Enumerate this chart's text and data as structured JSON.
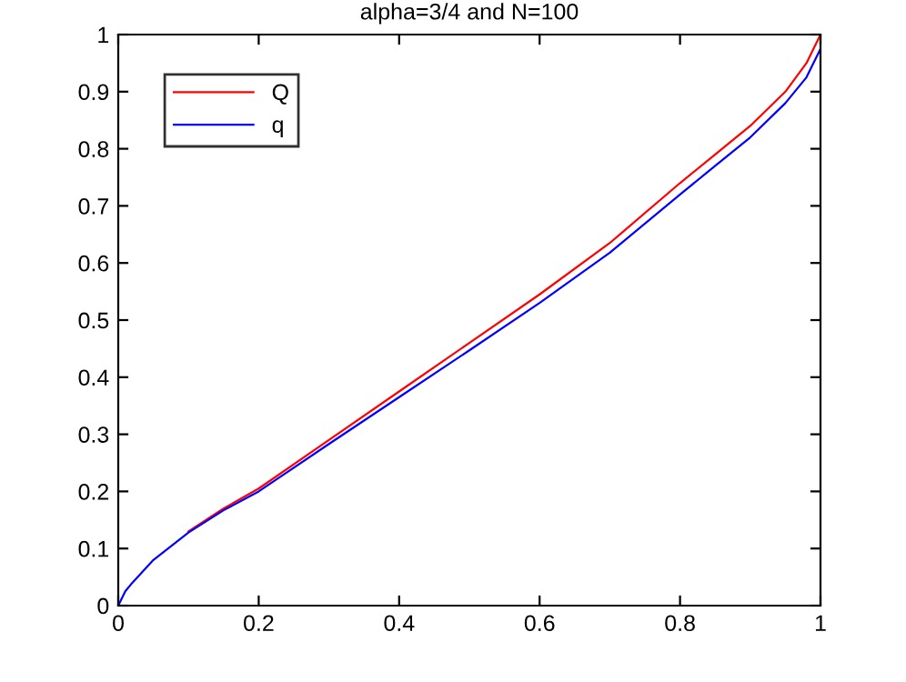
{
  "chart_data": {
    "type": "line",
    "title": "alpha=3/4 and N=100",
    "x": [
      0,
      0.01,
      0.02,
      0.05,
      0.1,
      0.15,
      0.2,
      0.3,
      0.4,
      0.5,
      0.6,
      0.7,
      0.8,
      0.85,
      0.9,
      0.95,
      0.98,
      1
    ],
    "series": [
      {
        "name": "Q",
        "color": "#ff0000",
        "values": [
          null,
          null,
          null,
          null,
          0.13,
          0.17,
          0.205,
          0.29,
          0.375,
          0.46,
          0.545,
          0.635,
          0.74,
          0.79,
          0.84,
          0.9,
          0.95,
          1.0
        ]
      },
      {
        "name": "q",
        "color": "#0000ff",
        "values": [
          0,
          0.025,
          0.04,
          0.08,
          0.128,
          0.167,
          0.2,
          0.283,
          0.365,
          0.447,
          0.53,
          0.618,
          0.72,
          0.77,
          0.82,
          0.88,
          0.925,
          0.975
        ]
      }
    ],
    "xlim": [
      0,
      1
    ],
    "ylim": [
      0,
      1
    ],
    "xticks": [
      0,
      0.2,
      0.4,
      0.6,
      0.8,
      1
    ],
    "yticks": [
      0,
      0.1,
      0.2,
      0.3,
      0.4,
      0.5,
      0.6,
      0.7,
      0.8,
      0.9,
      1
    ],
    "grid": false,
    "legend": "top left"
  }
}
